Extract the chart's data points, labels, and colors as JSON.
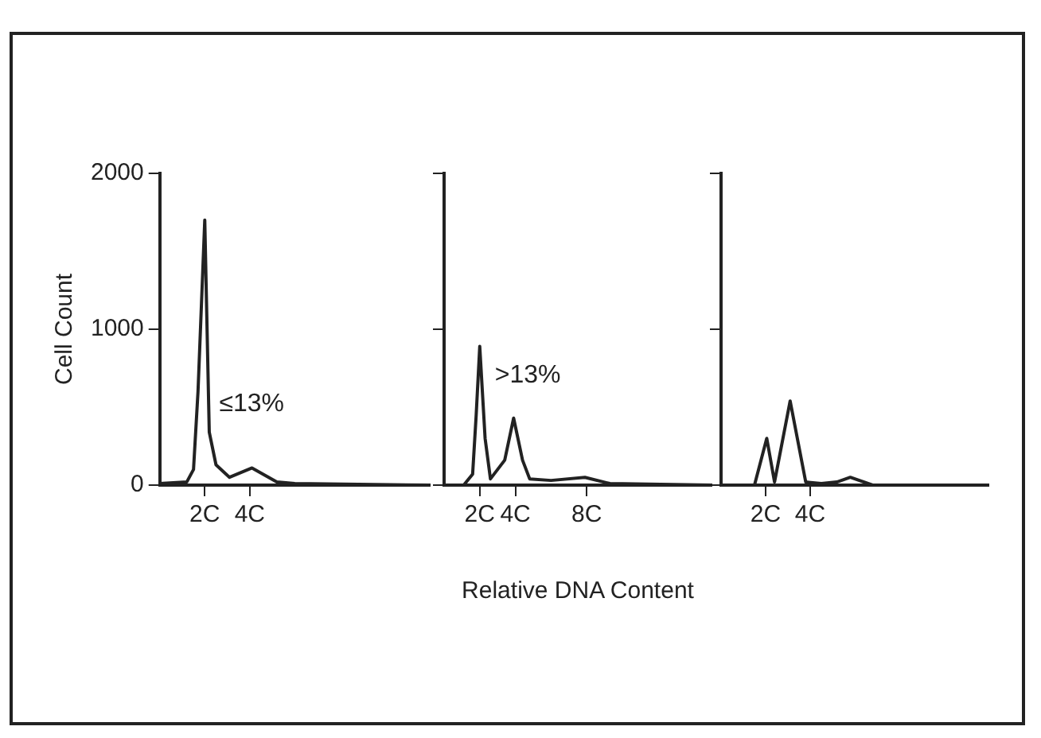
{
  "chart_data": [
    {
      "type": "line",
      "ylabel": "Cell Count",
      "x": [
        0,
        1.2,
        1.5,
        1.7,
        2,
        2.2,
        2.5,
        3.1,
        4.1,
        5.2,
        6,
        12
      ],
      "values": [
        10,
        20,
        100,
        600,
        1700,
        340,
        130,
        50,
        110,
        20,
        10,
        0
      ],
      "color": "#222222",
      "xlim": [
        0,
        12
      ],
      "xticks": [
        {
          "value": 2,
          "label": "2C"
        },
        {
          "value": 4,
          "label": "4C"
        }
      ],
      "ylim": [
        0,
        2000
      ],
      "yticks": [
        0,
        1000,
        2000
      ],
      "annotations": [
        "≤13%"
      ]
    },
    {
      "type": "line",
      "xlabel": "Relative DNA Content",
      "x": [
        0,
        1.1,
        1.6,
        1.8,
        2,
        2.3,
        2.6,
        3.4,
        3.9,
        4.4,
        4.8,
        6,
        7.9,
        9.3,
        15
      ],
      "values": [
        0,
        0,
        70,
        450,
        890,
        300,
        40,
        160,
        430,
        160,
        40,
        30,
        50,
        10,
        0
      ],
      "color": "#222222",
      "xlim": [
        0,
        15
      ],
      "xticks": [
        {
          "value": 2,
          "label": "2C"
        },
        {
          "value": 4,
          "label": "4C"
        },
        {
          "value": 8,
          "label": "8C"
        }
      ],
      "ylim": [
        0,
        2000
      ],
      "yticks": [
        {
          "value": 0,
          "label": null
        },
        {
          "value": 1000,
          "label": null
        },
        {
          "value": 2000,
          "label": null
        }
      ],
      "tick_labels": "x",
      "annotations": [
        ">13%"
      ]
    },
    {
      "type": "line",
      "x": [
        0,
        1.5,
        2.05,
        2.4,
        3.1,
        3.8,
        4.5,
        5.2,
        5.8,
        6.8,
        12
      ],
      "values": [
        0,
        0,
        300,
        20,
        540,
        20,
        10,
        20,
        50,
        0,
        0
      ],
      "color": "#222222",
      "xlim": [
        0,
        12
      ],
      "xticks": [
        {
          "value": 2,
          "label": "2C"
        },
        {
          "value": 4,
          "label": "4C"
        }
      ],
      "ylim": [
        0,
        2000
      ],
      "yticks": [
        {
          "value": 0,
          "label": null
        },
        {
          "value": 1000,
          "label": null
        },
        {
          "value": 2000,
          "label": null
        }
      ],
      "tick_labels": "x"
    }
  ]
}
